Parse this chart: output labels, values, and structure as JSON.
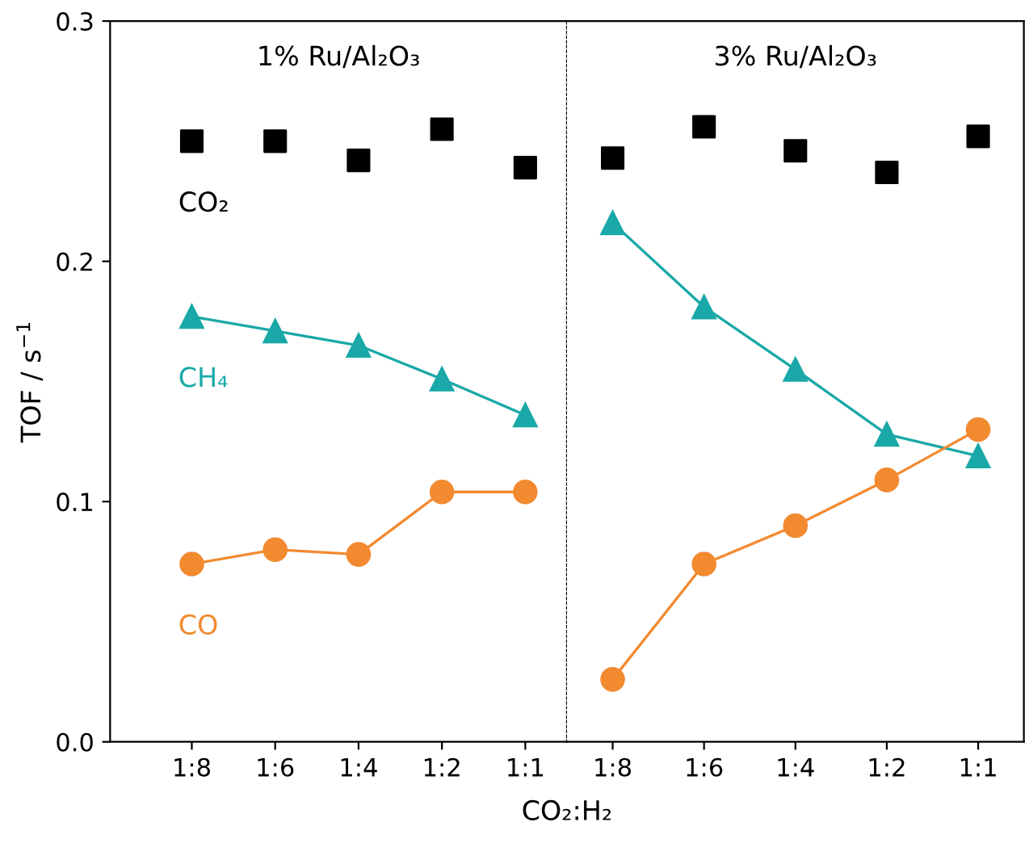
{
  "chart_data": [
    {
      "type": "line",
      "title": "1% Ru/Al₂O₃",
      "ylabel": "TOF / s$^{−1}$",
      "categories": [
        "1:8",
        "1:6",
        "1:4",
        "1:2",
        "1:1"
      ],
      "ylim": [
        0,
        0.3
      ],
      "yticks": [
        {
          "value": 0,
          "label": "0.0"
        },
        0.1,
        0.2,
        0.3
      ],
      "series": [
        {
          "name": "CO₂",
          "type": "scatter",
          "marker": "square",
          "color": "#000000",
          "values": [
            0.25,
            0.25,
            0.242,
            0.255,
            0.239
          ]
        },
        {
          "name": "CH₄",
          "marker": "triangle",
          "color": "#1aa8a8",
          "values": [
            0.177,
            0.171,
            0.165,
            0.151,
            0.136
          ]
        },
        {
          "name": "CO",
          "marker": "circle",
          "color": "#f28a30",
          "values": [
            0.074,
            0.08,
            0.078,
            0.104,
            0.104
          ]
        }
      ]
    },
    {
      "type": "line",
      "title": "3% Ru/Al₂O₃",
      "xlabel": "CO₂:H₂",
      "categories": [
        "1:8",
        "1:6",
        "1:4",
        "1:2",
        "1:1"
      ],
      "ylim": [
        0,
        0.3
      ],
      "tick_labels": "x",
      "series": [
        {
          "type": "scatter",
          "marker": "square",
          "color": "#000000",
          "values": [
            0.243,
            0.256,
            0.246,
            0.237,
            0.252
          ]
        },
        {
          "marker": "triangle",
          "color": "#1aa8a8",
          "values": [
            0.216,
            0.181,
            0.155,
            0.128,
            0.119
          ]
        },
        {
          "marker": "circle",
          "color": "#f28a30",
          "values": [
            0.026,
            0.074,
            0.09,
            0.109,
            0.13
          ]
        }
      ]
    }
  ]
}
